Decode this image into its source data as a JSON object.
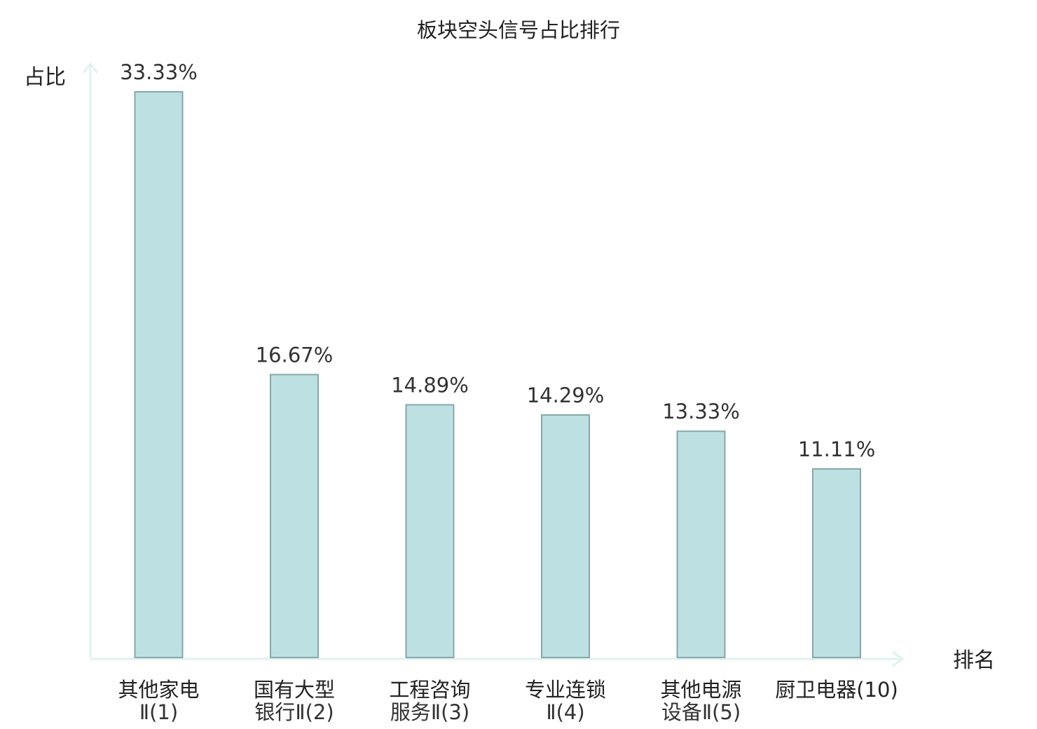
{
  "chart_data": {
    "type": "bar",
    "title": "板块空头信号占比排行",
    "ylabel": "占比",
    "xlabel": "排名",
    "ylim": [
      0,
      36
    ],
    "grid": false,
    "legend": "none",
    "categories": [
      {
        "lines": [
          "其他家电",
          "Ⅱ(1)"
        ],
        "highlight": false
      },
      {
        "lines": [
          "国有大型",
          "银行Ⅱ(2)"
        ],
        "highlight": false
      },
      {
        "lines": [
          "工程咨询",
          "服务Ⅱ(3)"
        ],
        "highlight": false
      },
      {
        "lines": [
          "专业连锁",
          "Ⅱ(4)"
        ],
        "highlight": false
      },
      {
        "lines": [
          "其他电源",
          "设备Ⅱ(5)"
        ],
        "highlight": false
      },
      {
        "lines": [
          "厨卫电器(10)"
        ],
        "highlight": true
      }
    ],
    "values": [
      33.33,
      16.67,
      14.89,
      14.29,
      13.33,
      11.11
    ],
    "value_labels": [
      "33.33%",
      "16.67%",
      "14.89%",
      "14.29%",
      "13.33%",
      "11.11%"
    ],
    "colors": {
      "bar_fill": "#bde0e3",
      "bar_stroke": "#86a8aa",
      "axis": "#dff2ef",
      "highlight_text": "#e02020",
      "text": "#222222"
    }
  }
}
